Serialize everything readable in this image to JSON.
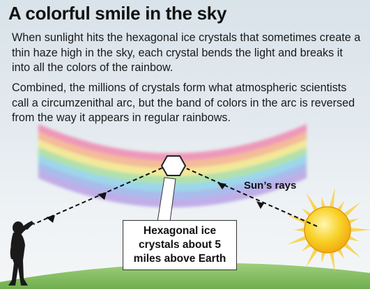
{
  "title": "A colorful smile in the sky",
  "paragraphs": [
    "When sunlight hits the hexagonal ice crystals that sometimes create a thin haze high in the sky, each crystal bends the light and breaks it into all the colors of the rainbow.",
    "Combined, the millions of crystals form what atmospheric scientists call a circumzenithal arc, but the band of colors in the arc is reversed from the way it appears in regular rainbows."
  ],
  "labels": {
    "callout": "Hexagonal ice crystals about 5 miles above Earth",
    "sun_rays": "Sun’s rays"
  },
  "colors": {
    "arc_bands": [
      "#f08ab0",
      "#f7b48a",
      "#f5e88a",
      "#a8dfa0",
      "#8fd3ea",
      "#9fb3ea",
      "#b9a3e6"
    ],
    "ground": "#8bc26a",
    "sun": "#f6c21c",
    "sun_rays": "#f8d248",
    "silhouette": "#1a1a1a"
  },
  "icons": [
    "hexagon-crystal-icon",
    "sun-icon",
    "person-silhouette-icon"
  ]
}
